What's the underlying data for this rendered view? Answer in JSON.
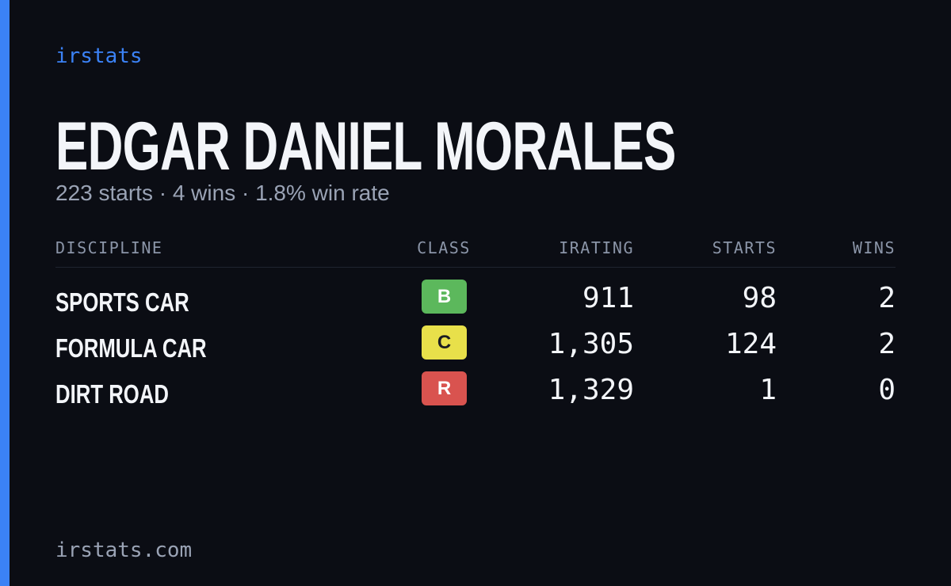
{
  "brand": "irstats",
  "driver": {
    "name": "EDGAR DANIEL MORALES",
    "summary": "223 starts · 4 wins · 1.8% win rate"
  },
  "table": {
    "headers": [
      "DISCIPLINE",
      "CLASS",
      "IRATING",
      "STARTS",
      "WINS"
    ],
    "rows": [
      {
        "discipline": "SPORTS CAR",
        "class": "B",
        "class_color": "#5cb85c",
        "irating": "911",
        "starts": "98",
        "wins": "2"
      },
      {
        "discipline": "FORMULA CAR",
        "class": "C",
        "class_color": "#e8e04a",
        "irating": "1,305",
        "starts": "124",
        "wins": "2"
      },
      {
        "discipline": "DIRT ROAD",
        "class": "R",
        "class_color": "#d9534f",
        "irating": "1,329",
        "starts": "1",
        "wins": "0"
      }
    ]
  },
  "footer": "irstats.com"
}
